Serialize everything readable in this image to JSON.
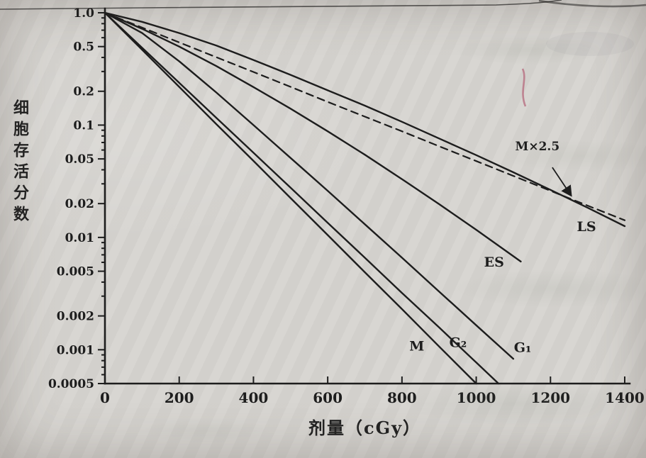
{
  "palette": {
    "paper": "#d7d5d1",
    "ink": "#1d1d1d",
    "pen_mark": "#b5687c"
  },
  "chart_data": {
    "type": "line",
    "title": "",
    "xlabel": "剂量（cGy）",
    "ylabel": "细胞存活分数",
    "legend": "none",
    "grid": false,
    "x_axis": {
      "scale": "linear",
      "min": 0,
      "max": 1400,
      "ticks": [
        0,
        200,
        400,
        600,
        800,
        1000,
        1200,
        1400
      ]
    },
    "y_axis": {
      "scale": "log",
      "min": 0.0005,
      "max": 1.0,
      "ticks": [
        1.0,
        0.5,
        0.2,
        0.1,
        0.05,
        0.02,
        0.01,
        0.005,
        0.002,
        0.001,
        0.0005
      ],
      "tick_labels": [
        "1.0",
        "0.5",
        "0.2",
        "0.1",
        "0.05",
        "0.02",
        "0.01",
        "0.005",
        "0.002",
        "0.001",
        "0.0005"
      ]
    },
    "series": [
      {
        "name": "M",
        "style": "solid",
        "x": [
          0,
          100,
          200,
          300,
          400,
          500,
          600,
          700,
          800,
          900,
          1000
        ],
        "y": [
          1,
          0.468,
          0.219,
          0.102,
          0.048,
          0.0224,
          0.0105,
          0.0049,
          0.0023,
          0.00107,
          0.0005
        ]
      },
      {
        "name": "G₂",
        "style": "solid",
        "x": [
          0,
          100,
          200,
          300,
          400,
          500,
          600,
          700,
          800,
          900,
          1000,
          1060
        ],
        "y": [
          1,
          0.488,
          0.238,
          0.116,
          0.0568,
          0.0277,
          0.0135,
          0.0066,
          0.0032,
          0.00158,
          0.00077,
          0.0005
        ]
      },
      {
        "name": "G₁",
        "style": "solid",
        "x": [
          0,
          100,
          200,
          300,
          400,
          500,
          600,
          700,
          800,
          900,
          1000,
          1100
        ],
        "y": [
          1,
          0.66,
          0.37,
          0.195,
          0.1,
          0.051,
          0.026,
          0.0131,
          0.0066,
          0.0033,
          0.00165,
          0.00083
        ]
      },
      {
        "name": "ES",
        "style": "solid",
        "x": [
          0,
          100,
          200,
          300,
          400,
          500,
          600,
          700,
          800,
          900,
          1000,
          1100,
          1120
        ],
        "y": [
          1,
          0.72,
          0.5,
          0.335,
          0.218,
          0.14,
          0.088,
          0.0545,
          0.033,
          0.0198,
          0.0117,
          0.0068,
          0.0061
        ]
      },
      {
        "name": "LS",
        "style": "solid",
        "x": [
          0,
          100,
          200,
          300,
          400,
          500,
          600,
          700,
          800,
          900,
          1000,
          1100,
          1200,
          1300,
          1400
        ],
        "y": [
          1,
          0.83,
          0.66,
          0.51,
          0.38,
          0.28,
          0.204,
          0.149,
          0.107,
          0.076,
          0.054,
          0.038,
          0.0265,
          0.0184,
          0.0126
        ]
      },
      {
        "name": "M×2.5",
        "style": "dashed",
        "x": [
          0,
          100,
          200,
          300,
          400,
          500,
          600,
          700,
          800,
          900,
          1000,
          1100,
          1200,
          1300,
          1400
        ],
        "y": [
          1,
          0.738,
          0.545,
          0.402,
          0.297,
          0.219,
          0.161,
          0.119,
          0.088,
          0.0648,
          0.0478,
          0.0353,
          0.026,
          0.0192,
          0.0142
        ]
      }
    ],
    "annotations": [
      {
        "text": "M×2.5",
        "x": 1105,
        "y": 0.065,
        "anchor": "start",
        "size": 17
      },
      {
        "text": "LS",
        "x": 1297,
        "y": 0.0124,
        "anchor": "middle",
        "size": 19
      },
      {
        "text": "ES",
        "x": 1048,
        "y": 0.006,
        "anchor": "middle",
        "size": 19
      },
      {
        "text": "M",
        "x": 840,
        "y": 0.00107,
        "anchor": "middle",
        "size": 19
      },
      {
        "text": "G₂",
        "x": 951,
        "y": 0.00115,
        "anchor": "middle",
        "size": 19
      },
      {
        "text": "G₁",
        "x": 1125,
        "y": 0.00104,
        "anchor": "middle",
        "size": 19
      }
    ],
    "arrow": {
      "from_x": 1205,
      "from_y": 0.042,
      "to_x": 1256,
      "to_y": 0.0235
    }
  }
}
